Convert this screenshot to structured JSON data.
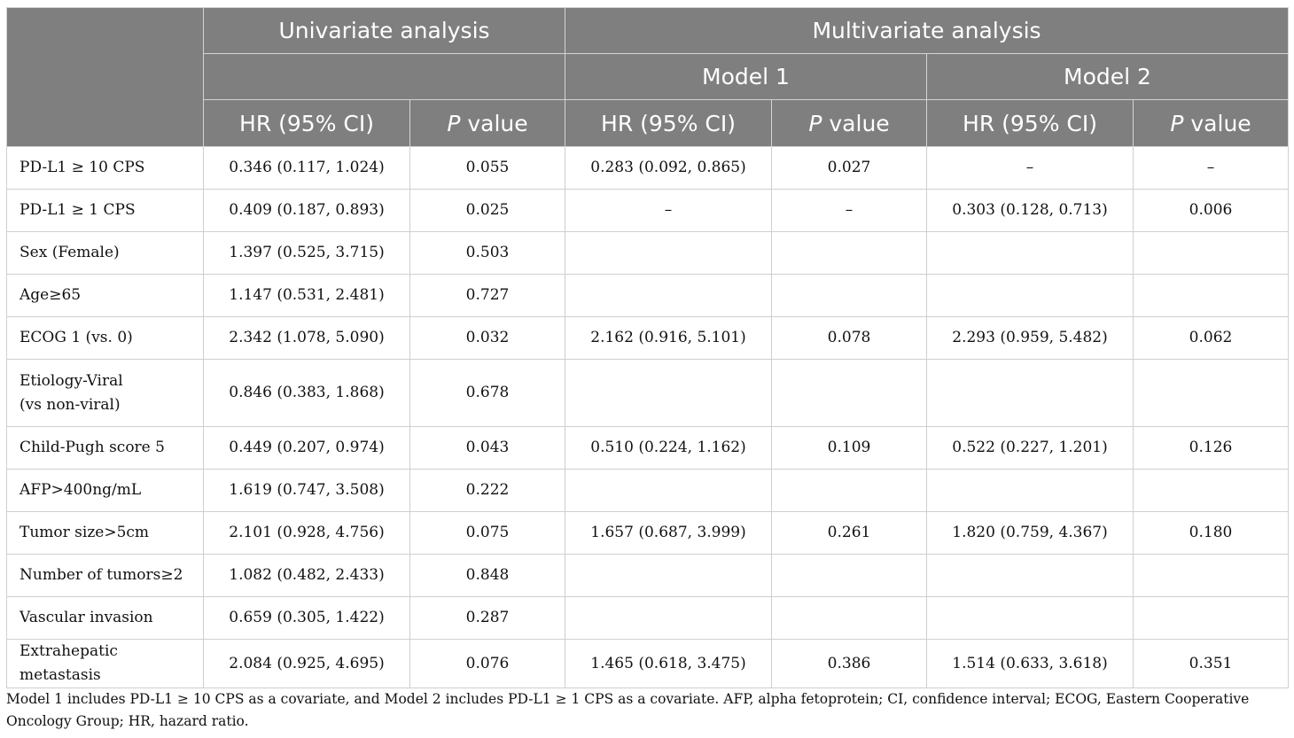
{
  "header": {
    "univariate": "Univariate analysis",
    "multivariate": "Multivariate analysis",
    "model1": "Model 1",
    "model2": "Model 2",
    "hr_label": "HR (95% CI)",
    "p_italic": "P",
    "p_rest": " value"
  },
  "rows": [
    {
      "label": "PD-L1 ≥ 10 CPS",
      "label2": "",
      "u_hr": "0.346 (0.117, 1.024)",
      "u_p": "0.055",
      "m1_hr": "0.283 (0.092, 0.865)",
      "m1_p": "0.027",
      "m2_hr": "–",
      "m2_p": "–"
    },
    {
      "label": "PD-L1 ≥ 1 CPS",
      "label2": "",
      "u_hr": "0.409 (0.187, 0.893)",
      "u_p": "0.025",
      "m1_hr": "–",
      "m1_p": "–",
      "m2_hr": "0.303 (0.128, 0.713)",
      "m2_p": "0.006"
    },
    {
      "label": "Sex (Female)",
      "label2": "",
      "u_hr": "1.397 (0.525, 3.715)",
      "u_p": "0.503",
      "m1_hr": "",
      "m1_p": "",
      "m2_hr": "",
      "m2_p": ""
    },
    {
      "label": "Age≥65",
      "label2": "",
      "u_hr": "1.147 (0.531, 2.481)",
      "u_p": "0.727",
      "m1_hr": "",
      "m1_p": "",
      "m2_hr": "",
      "m2_p": ""
    },
    {
      "label": "ECOG 1 (vs. 0)",
      "label2": "",
      "u_hr": "2.342 (1.078, 5.090)",
      "u_p": "0.032",
      "m1_hr": "2.162 (0.916, 5.101)",
      "m1_p": "0.078",
      "m2_hr": "2.293 (0.959, 5.482)",
      "m2_p": "0.062"
    },
    {
      "label": "Etiology-Viral",
      "label2": "(vs non-viral)",
      "u_hr": "0.846 (0.383, 1.868)",
      "u_p": "0.678",
      "m1_hr": "",
      "m1_p": "",
      "m2_hr": "",
      "m2_p": ""
    },
    {
      "label": "Child-Pugh score 5",
      "label2": "",
      "u_hr": "0.449 (0.207, 0.974)",
      "u_p": "0.043",
      "m1_hr": "0.510 (0.224, 1.162)",
      "m1_p": "0.109",
      "m2_hr": "0.522 (0.227, 1.201)",
      "m2_p": "0.126"
    },
    {
      "label": "AFP>400ng/mL",
      "label2": "",
      "u_hr": "1.619 (0.747, 3.508)",
      "u_p": "0.222",
      "m1_hr": "",
      "m1_p": "",
      "m2_hr": "",
      "m2_p": ""
    },
    {
      "label": "Tumor size>5cm",
      "label2": "",
      "u_hr": "2.101 (0.928, 4.756)",
      "u_p": "0.075",
      "m1_hr": "1.657 (0.687, 3.999)",
      "m1_p": "0.261",
      "m2_hr": "1.820 (0.759, 4.367)",
      "m2_p": "0.180"
    },
    {
      "label": "Number of tumors≥2",
      "label2": "",
      "u_hr": "1.082 (0.482, 2.433)",
      "u_p": "0.848",
      "m1_hr": "",
      "m1_p": "",
      "m2_hr": "",
      "m2_p": ""
    },
    {
      "label": "Vascular invasion",
      "label2": "",
      "u_hr": "0.659 (0.305, 1.422)",
      "u_p": "0.287",
      "m1_hr": "",
      "m1_p": "",
      "m2_hr": "",
      "m2_p": ""
    },
    {
      "label": "Extrahepatic metastasis",
      "label2": "",
      "u_hr": "2.084 (0.925, 4.695)",
      "u_p": "0.076",
      "m1_hr": "1.465 (0.618, 3.475)",
      "m1_p": "0.386",
      "m2_hr": "1.514 (0.633, 3.618)",
      "m2_p": "0.351"
    }
  ],
  "footnote": "Model 1 includes PD-L1 ≥ 10 CPS as a covariate, and Model 2 includes PD-L1 ≥ 1 CPS as a covariate. AFP, alpha fetoprotein; CI, confidence interval; ECOG, Eastern Cooperative Oncology Group; HR, hazard ratio."
}
